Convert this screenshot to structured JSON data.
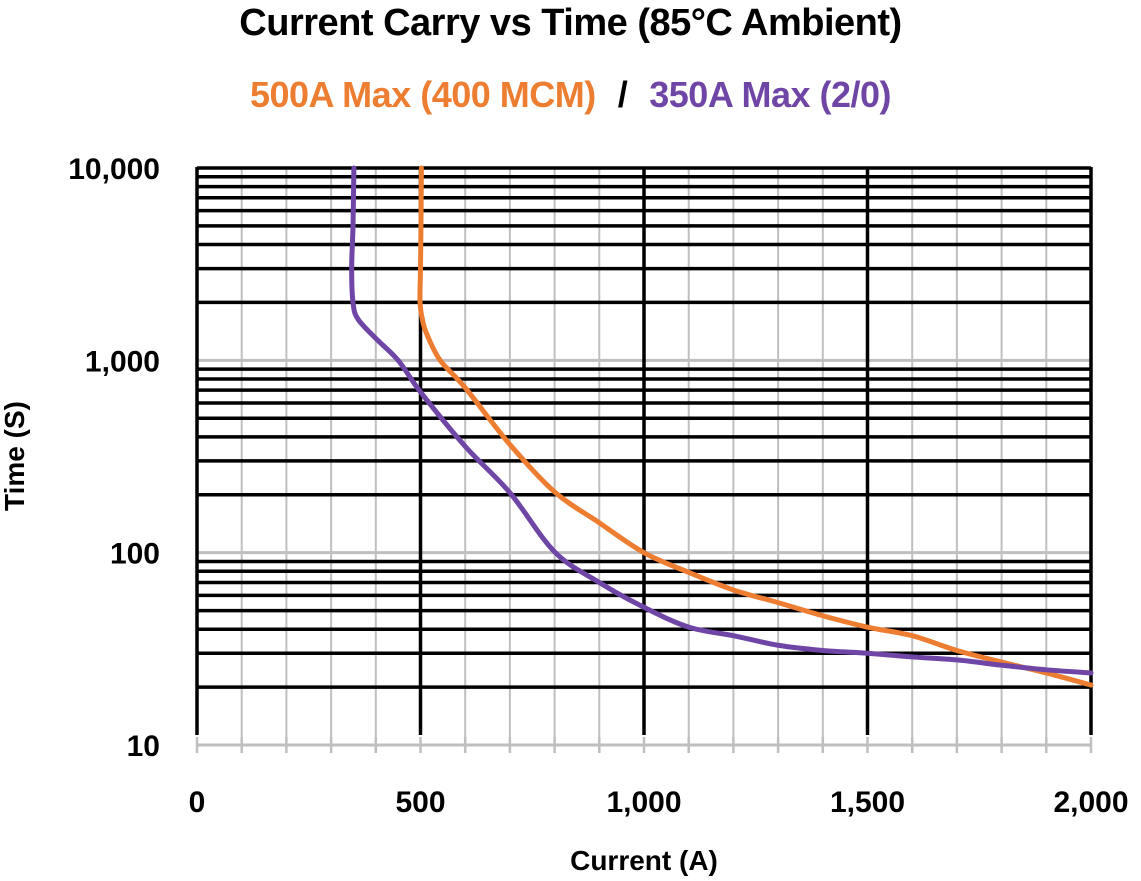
{
  "chart_data": {
    "type": "line",
    "title": "Current Carry vs Time (85°C Ambient)",
    "subtitle": {
      "series_a": "500A Max (400 MCM)",
      "separator": "/",
      "series_b": "350A Max (2/0)"
    },
    "xlabel": "Current (A)",
    "ylabel": "Time (S)",
    "xlim": [
      0,
      2000
    ],
    "ylim": [
      10,
      10000
    ],
    "yscale": "log",
    "x_ticks": [
      {
        "value": 0,
        "label": "0"
      },
      {
        "value": 500,
        "label": "500"
      },
      {
        "value": 1000,
        "label": "1,000"
      },
      {
        "value": 1500,
        "label": "1,500"
      },
      {
        "value": 2000,
        "label": "2,000"
      }
    ],
    "y_ticks": [
      {
        "value": 10,
        "label": "10"
      },
      {
        "value": 100,
        "label": "100"
      },
      {
        "value": 1000,
        "label": "1,000"
      },
      {
        "value": 10000,
        "label": "10,000"
      }
    ],
    "grid": true,
    "legend_position": "subtitle",
    "series": [
      {
        "name": "500A Max (400 MCM)",
        "color": "#ED7D31",
        "points": [
          [
            502,
            10000
          ],
          [
            501,
            5000
          ],
          [
            500,
            3000
          ],
          [
            499,
            2000
          ],
          [
            505,
            1600
          ],
          [
            514,
            1370
          ],
          [
            544,
            1000
          ],
          [
            600,
            720
          ],
          [
            700,
            365
          ],
          [
            800,
            207
          ],
          [
            900,
            143
          ],
          [
            1000,
            100
          ],
          [
            1100,
            79
          ],
          [
            1200,
            64
          ],
          [
            1300,
            55
          ],
          [
            1400,
            47
          ],
          [
            1500,
            41
          ],
          [
            1600,
            37
          ],
          [
            1700,
            31
          ],
          [
            1800,
            27
          ],
          [
            1900,
            23.7
          ],
          [
            2000,
            20.5
          ]
        ]
      },
      {
        "name": "350A Max (2/0)",
        "color": "#6F45A6",
        "points": [
          [
            351,
            10000
          ],
          [
            349,
            5000
          ],
          [
            346,
            3000
          ],
          [
            349,
            2000
          ],
          [
            360,
            1640
          ],
          [
            400,
            1300
          ],
          [
            450,
            1000
          ],
          [
            500,
            685
          ],
          [
            600,
            357
          ],
          [
            700,
            205
          ],
          [
            800,
            101
          ],
          [
            900,
            70
          ],
          [
            1000,
            52
          ],
          [
            1100,
            41
          ],
          [
            1200,
            37
          ],
          [
            1300,
            33
          ],
          [
            1400,
            31
          ],
          [
            1500,
            30
          ],
          [
            1600,
            28.7
          ],
          [
            1700,
            27.7
          ],
          [
            1800,
            26
          ],
          [
            1900,
            24.6
          ],
          [
            2000,
            23.7
          ]
        ]
      }
    ]
  },
  "colors": {
    "orange": "#ED7D31",
    "purple": "#6F45A6",
    "major_grid": "#000000",
    "minor_grid": "#BFBFBF"
  }
}
